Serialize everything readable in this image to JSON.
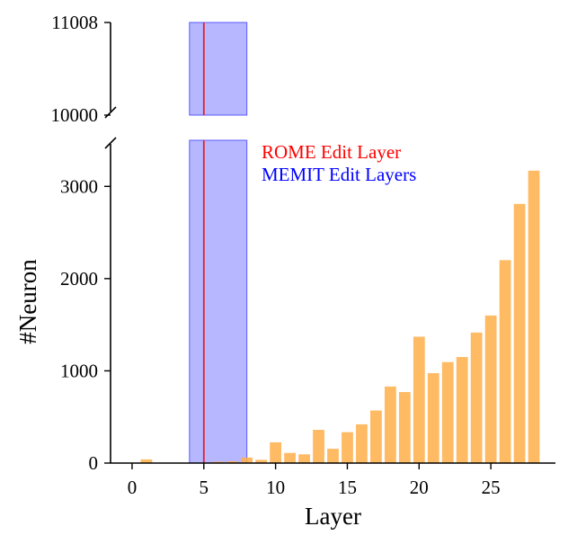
{
  "chart_data": {
    "type": "bar",
    "xlabel": "Layer",
    "ylabel": "#Neuron",
    "x": [
      0,
      1,
      2,
      3,
      4,
      5,
      6,
      7,
      8,
      9,
      10,
      11,
      12,
      13,
      14,
      15,
      16,
      17,
      18,
      19,
      20,
      21,
      22,
      23,
      24,
      25,
      26,
      27,
      28
    ],
    "values": [
      0,
      40,
      0,
      0,
      0,
      5,
      15,
      20,
      60,
      35,
      225,
      110,
      95,
      360,
      155,
      335,
      420,
      570,
      830,
      770,
      1370,
      975,
      1095,
      1150,
      1415,
      1600,
      2200,
      2810,
      3170
    ],
    "bar_color": "#ffb04f",
    "x_ticks": [
      "0",
      "5",
      "10",
      "15",
      "20",
      "25"
    ],
    "x_tick_values": [
      0,
      5,
      10,
      15,
      20,
      25
    ],
    "y_ticks_lower": [
      "0",
      "1000",
      "2000",
      "3000"
    ],
    "y_tick_values_lower": [
      0,
      1000,
      2000,
      3000
    ],
    "y_ticks_upper": [
      "10000",
      "11008"
    ],
    "y_tick_values_upper": [
      10000,
      11008
    ],
    "xlim": [
      -1.5,
      29.5
    ],
    "ylim_lower": [
      0,
      3500
    ],
    "ylim_upper": [
      10000,
      11008
    ],
    "axis_break": true,
    "rome_layer": 5,
    "rome_color": "#e8202a",
    "memit_layers": [
      4,
      8
    ],
    "memit_color": "#7b7bff",
    "legend_placement": "upper-center",
    "legend": [
      {
        "label": "ROME Edit Layer",
        "color": "#ff0000"
      },
      {
        "label": "MEMIT Edit Layers",
        "color": "#0000ff"
      }
    ]
  }
}
